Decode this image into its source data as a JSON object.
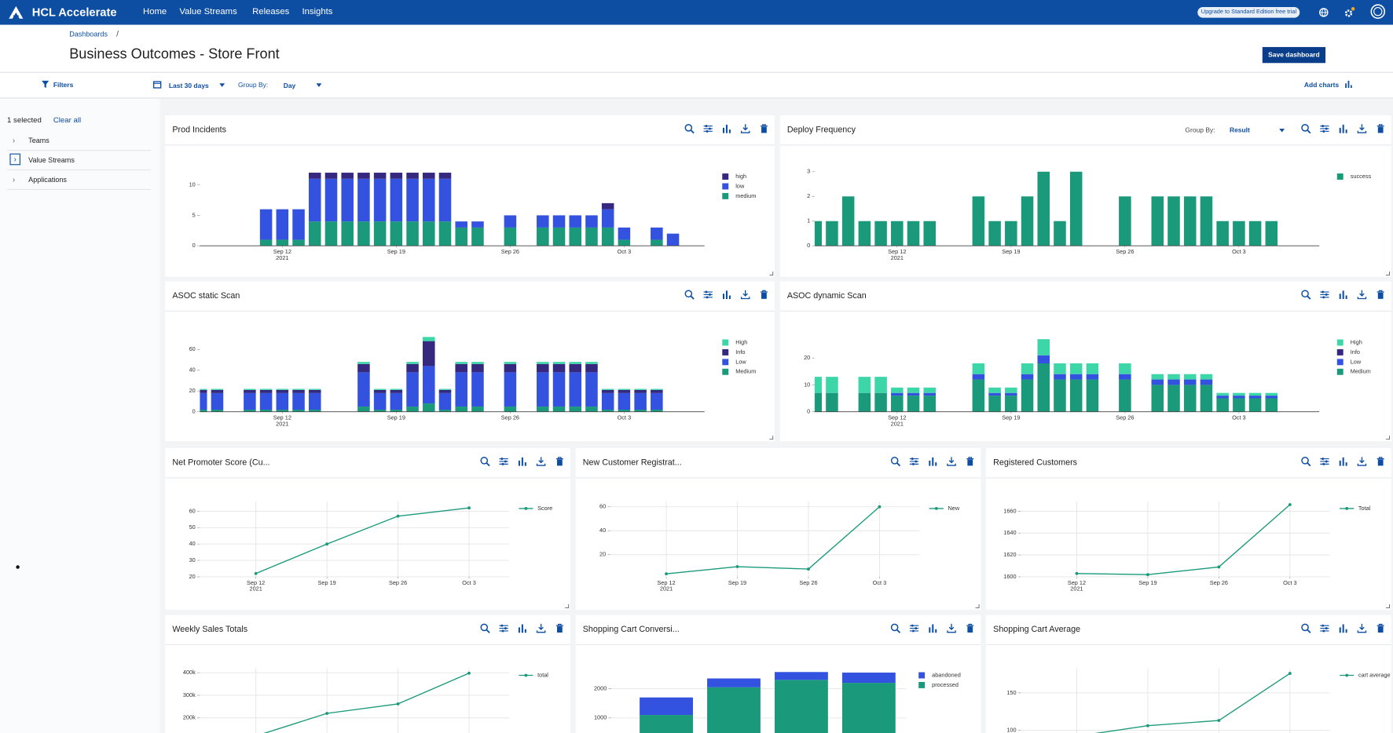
{
  "nav": {
    "brand": "HCL Accelerate",
    "links": [
      "Home",
      "Value Streams",
      "Releases",
      "Insights"
    ],
    "upgrade": "Upgrade to Standard Edition free trial"
  },
  "breadcrumb": {
    "link": "Dashboards",
    "separator": "/"
  },
  "title": "Business Outcomes - Store Front",
  "save_button": "Save dashboard",
  "toolbar": {
    "filters": "Filters",
    "range": "Last 30 days",
    "group_by": "Group By:",
    "group": "Day",
    "add": "Add charts"
  },
  "sidebar": {
    "selected": "1 selected",
    "clear": "Clear all",
    "items": [
      "Teams",
      "Value Streams",
      "Applications"
    ]
  },
  "chart_data": [
    {
      "type": "bar",
      "stacked": true,
      "title": "Prod Incidents",
      "legend": "top-right",
      "grid": false,
      "categories": [
        null,
        null,
        null,
        null,
        null,
        "Sep 12",
        null,
        null,
        null,
        null,
        null,
        null,
        "Sep 19",
        null,
        null,
        null,
        null,
        null,
        null,
        "Sep 26",
        null,
        null,
        null,
        null,
        null,
        null,
        "Oct 3",
        null,
        null,
        null,
        null
      ],
      "x_year": "2021",
      "ylim": [
        0,
        15
      ],
      "yticks": [
        0,
        5,
        10
      ],
      "series": [
        {
          "name": "high",
          "color": "#35287f",
          "values": [
            0,
            0,
            0,
            0,
            0,
            0,
            0,
            1,
            1,
            1,
            1,
            1,
            1,
            1,
            1,
            1,
            0,
            0,
            0,
            0,
            0,
            0,
            0,
            0,
            0,
            1,
            0,
            0,
            0,
            0,
            0
          ]
        },
        {
          "name": "low",
          "color": "#3352e0",
          "values": [
            0,
            0,
            0,
            0,
            5,
            5,
            5,
            7,
            7,
            7,
            7,
            7,
            7,
            7,
            7,
            7,
            1,
            1,
            0,
            2,
            0,
            2,
            2,
            2,
            2,
            3,
            2,
            0,
            2,
            2,
            0
          ]
        },
        {
          "name": "medium",
          "color": "#1a9a7a",
          "values": [
            0,
            0,
            0,
            0,
            1,
            1,
            1,
            4,
            4,
            4,
            4,
            4,
            4,
            4,
            4,
            4,
            3,
            3,
            0,
            3,
            0,
            3,
            3,
            3,
            3,
            3,
            1,
            0,
            1,
            0,
            0
          ]
        }
      ]
    },
    {
      "type": "bar",
      "stacked": true,
      "title": "Deploy Frequency",
      "group_by": "Group By:",
      "group": "Result",
      "legend": "top-right",
      "grid": false,
      "categories": [
        null,
        null,
        null,
        null,
        null,
        "Sep 12",
        null,
        null,
        null,
        null,
        null,
        null,
        "Sep 19",
        null,
        null,
        null,
        null,
        null,
        null,
        "Sep 26",
        null,
        null,
        null,
        null,
        null,
        null,
        "Oct 3",
        null,
        null,
        null,
        null
      ],
      "x_year": "2021",
      "ylim": [
        0,
        3.7
      ],
      "yticks": [
        0,
        1,
        2,
        3
      ],
      "series": [
        {
          "name": "success",
          "color": "#1a9a7a",
          "values": [
            1,
            1,
            2,
            1,
            1,
            1,
            1,
            1,
            0,
            0,
            2,
            1,
            1,
            2,
            3,
            1,
            3,
            0,
            0,
            2,
            0,
            2,
            2,
            2,
            2,
            1,
            1,
            1,
            1,
            0,
            0
          ]
        }
      ]
    },
    {
      "type": "bar",
      "stacked": true,
      "title": "ASOC static Scan",
      "legend": "top-right",
      "grid": false,
      "categories": [
        null,
        null,
        null,
        null,
        null,
        "Sep 12",
        null,
        null,
        null,
        null,
        null,
        null,
        "Sep 19",
        null,
        null,
        null,
        null,
        null,
        null,
        "Sep 26",
        null,
        null,
        null,
        null,
        null,
        null,
        "Oct 3",
        null,
        null,
        null,
        null
      ],
      "x_year": "2021",
      "ylim": [
        0,
        88
      ],
      "yticks": [
        0,
        20,
        40,
        60
      ],
      "series": [
        {
          "name": "High",
          "color": "#3dd6a8",
          "values": [
            1,
            1,
            0,
            1,
            1,
            1,
            1,
            1,
            0,
            0,
            2,
            1,
            1,
            2,
            4,
            1,
            2,
            2,
            0,
            2,
            0,
            2,
            2,
            2,
            2,
            1,
            1,
            1,
            1,
            0,
            0
          ]
        },
        {
          "name": "Info",
          "color": "#35287f",
          "values": [
            3,
            3,
            0,
            3,
            3,
            3,
            3,
            3,
            0,
            0,
            8,
            3,
            3,
            8,
            24,
            3,
            8,
            8,
            0,
            8,
            0,
            8,
            8,
            8,
            8,
            3,
            3,
            3,
            3,
            0,
            0
          ]
        },
        {
          "name": "Low",
          "color": "#3352e0",
          "values": [
            16,
            16,
            0,
            16,
            16,
            16,
            16,
            16,
            0,
            0,
            33,
            16,
            16,
            33,
            36,
            16,
            33,
            33,
            0,
            33,
            0,
            33,
            33,
            33,
            33,
            16,
            16,
            16,
            16,
            0,
            0
          ]
        },
        {
          "name": "Medium",
          "color": "#1a9a7a",
          "values": [
            2,
            2,
            0,
            2,
            2,
            2,
            2,
            2,
            0,
            0,
            5,
            2,
            2,
            5,
            8,
            2,
            5,
            5,
            0,
            5,
            0,
            5,
            5,
            5,
            5,
            2,
            2,
            2,
            2,
            0,
            0
          ]
        }
      ]
    },
    {
      "type": "bar",
      "stacked": true,
      "title": "ASOC dynamic Scan",
      "legend": "top-right",
      "grid": false,
      "categories": [
        null,
        null,
        null,
        null,
        null,
        "Sep 12",
        null,
        null,
        null,
        null,
        null,
        null,
        "Sep 19",
        null,
        null,
        null,
        null,
        null,
        null,
        "Sep 26",
        null,
        null,
        null,
        null,
        null,
        null,
        "Oct 3",
        null,
        null,
        null,
        null
      ],
      "x_year": "2021",
      "ylim": [
        0,
        34
      ],
      "yticks": [
        0,
        10,
        20
      ],
      "series": [
        {
          "name": "High",
          "color": "#3dd6a8",
          "values": [
            6,
            6,
            0,
            6,
            6,
            2,
            2,
            2,
            0,
            0,
            4,
            2,
            2,
            4,
            6,
            4,
            4,
            4,
            0,
            4,
            0,
            2,
            2,
            2,
            2,
            1,
            1,
            1,
            1,
            0,
            0
          ]
        },
        {
          "name": "Info",
          "color": "#35287f",
          "values": [
            0,
            0,
            0,
            0,
            0,
            0,
            0,
            0,
            0,
            0,
            0,
            0,
            0,
            0,
            0,
            0,
            0,
            0,
            0,
            0,
            0,
            0,
            0,
            0,
            0,
            0,
            0,
            0,
            0,
            0,
            0
          ]
        },
        {
          "name": "Low",
          "color": "#3352e0",
          "values": [
            0,
            0,
            0,
            0,
            0,
            1,
            1,
            1,
            0,
            0,
            2,
            1,
            1,
            2,
            3,
            2,
            2,
            2,
            0,
            2,
            0,
            2,
            2,
            2,
            2,
            1,
            1,
            1,
            1,
            0,
            0
          ]
        },
        {
          "name": "Medium",
          "color": "#1a9a7a",
          "values": [
            7,
            7,
            0,
            7,
            7,
            6,
            6,
            6,
            0,
            0,
            12,
            6,
            6,
            12,
            18,
            12,
            12,
            12,
            0,
            12,
            0,
            10,
            10,
            10,
            10,
            5,
            5,
            5,
            5,
            0,
            0
          ]
        }
      ]
    },
    {
      "type": "line",
      "title": "Net Promoter Score (Cu...",
      "legend": "top-right",
      "grid": true,
      "categories": [
        "Sep 12",
        "Sep 19",
        "Sep 26",
        "Oct 3"
      ],
      "x_year": "2021",
      "ylim": [
        20,
        66
      ],
      "yticks": [
        20,
        30,
        40,
        50,
        60
      ],
      "series": [
        {
          "name": "Score",
          "color": "#1a9a7a",
          "values": [
            22,
            40,
            57,
            62
          ]
        }
      ]
    },
    {
      "type": "line",
      "title": "New Customer Registrat...",
      "legend": "top-right",
      "grid": true,
      "categories": [
        "Sep 12",
        "Sep 19",
        "Sep 26",
        "Oct 3"
      ],
      "x_year": "2021",
      "ylim": [
        1.5,
        64.5
      ],
      "yticks": [
        20,
        40,
        60
      ],
      "series": [
        {
          "name": "New",
          "color": "#1a9a7a",
          "values": [
            4,
            10,
            8,
            60
          ]
        }
      ]
    },
    {
      "type": "line",
      "title": "Registered Customers",
      "legend": "top-right",
      "grid": true,
      "categories": [
        "Sep 12",
        "Sep 19",
        "Sep 26",
        "Oct 3"
      ],
      "x_year": "2021",
      "ylim": [
        1600,
        1669
      ],
      "yticks": [
        1600,
        1620,
        1640,
        1660
      ],
      "series": [
        {
          "name": "Total",
          "color": "#1a9a7a",
          "values": [
            1603,
            1602,
            1609,
            1666
          ]
        }
      ]
    },
    {
      "type": "line",
      "title": "Weekly Sales Totals",
      "legend": "top-right",
      "grid": true,
      "categories": [
        null,
        null,
        null,
        null
      ],
      "ylim": [
        86000,
        420000
      ],
      "yticks": [
        {
          "value": 200000,
          "label": "200k"
        },
        {
          "value": 300000,
          "label": "300k"
        },
        {
          "value": 400000,
          "label": "400k"
        }
      ],
      "series": [
        {
          "name": "total",
          "color": "#1a9a7a",
          "values": [
            120000,
            220000,
            262000,
            398000
          ]
        }
      ]
    },
    {
      "type": "bar",
      "stacked": true,
      "title": "Shopping Cart Conversi...",
      "legend": "top-right",
      "grid": true,
      "categories": [
        null,
        null,
        null,
        null
      ],
      "ylim": [
        120,
        2700
      ],
      "yticks": [
        1000,
        2000
      ],
      "series": [
        {
          "name": "abandoned",
          "color": "#3352e0",
          "values": [
            600,
            300,
            270,
            350
          ]
        },
        {
          "name": "processed",
          "color": "#1a9a7a",
          "values": [
            1100,
            2050,
            2300,
            2200
          ]
        }
      ]
    },
    {
      "type": "line",
      "title": "Shopping Cart Average",
      "legend": "top-right",
      "grid": true,
      "categories": [
        null,
        null,
        null,
        null
      ],
      "ylim": [
        82,
        183
      ],
      "yticks": [
        100,
        150
      ],
      "series": [
        {
          "name": "cart average",
          "color": "#1a9a7a",
          "values": [
            92,
            106,
            113,
            176
          ]
        }
      ]
    }
  ]
}
